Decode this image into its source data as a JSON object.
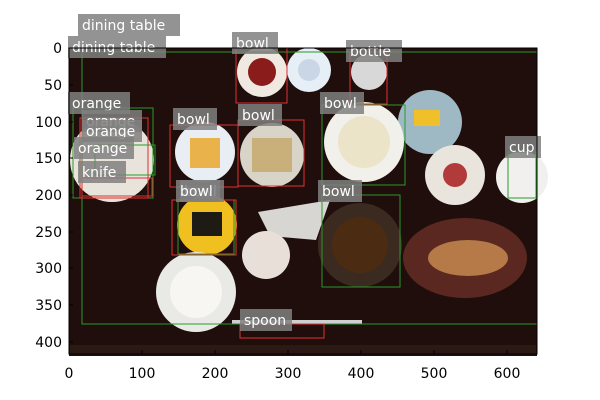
{
  "x_ticks": [
    "0",
    "100",
    "200",
    "300",
    "400",
    "500",
    "600"
  ],
  "y_ticks": [
    "0",
    "50",
    "100",
    "150",
    "200",
    "250",
    "300",
    "350",
    "400"
  ],
  "detections": [
    {
      "label": "dining table",
      "box_color": "#e03030"
    },
    {
      "label": "dining table",
      "box_color": "#2a9a2a"
    },
    {
      "label": "bowl",
      "box_color": "#e03030"
    },
    {
      "label": "bottle",
      "box_color": "#e03030"
    },
    {
      "label": "orange",
      "box_color": "#2a9a2a"
    },
    {
      "label": "orange",
      "box_color": "#e03030"
    },
    {
      "label": "orange",
      "box_color": "#2a9a2a"
    },
    {
      "label": "orange",
      "box_color": "#e03030"
    },
    {
      "label": "knife",
      "box_color": "#e03030"
    },
    {
      "label": "bowl",
      "box_color": "#e03030"
    },
    {
      "label": "bowl",
      "box_color": "#2a9a2a"
    },
    {
      "label": "bowl",
      "box_color": "#2a9a2a"
    },
    {
      "label": "bowl",
      "box_color": "#2a9a2a"
    },
    {
      "label": "bowl",
      "box_color": "#e03030"
    },
    {
      "label": "bowl",
      "box_color": "#2a9a2a"
    },
    {
      "label": "cup",
      "box_color": "#e03030"
    },
    {
      "label": "spoon",
      "box_color": "#e03030"
    }
  ]
}
